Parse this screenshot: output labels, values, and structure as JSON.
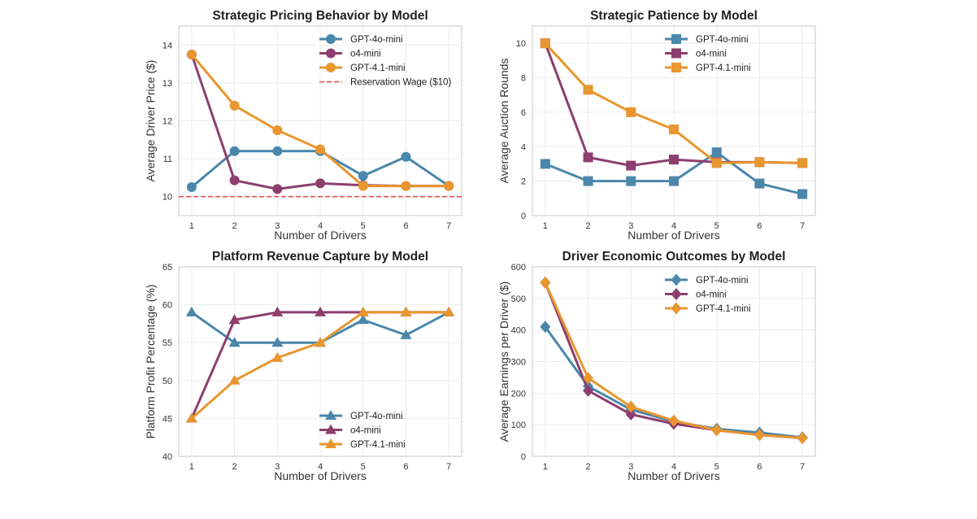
{
  "chart_data": [
    {
      "type": "line",
      "title": "Strategic Pricing Behavior by Model",
      "xlabel": "Number of Drivers",
      "ylabel": "Average Driver Price ($)",
      "x": [
        1,
        2,
        3,
        4,
        5,
        6,
        7
      ],
      "xticks": [
        1,
        2,
        3,
        4,
        5,
        6,
        7
      ],
      "yticks": [
        10,
        11,
        12,
        13,
        14
      ],
      "ylim": [
        9.5,
        14.5
      ],
      "grid": true,
      "marker": "circle",
      "legend_position": "upper-right",
      "series": [
        {
          "name": "GPT-4o-mini",
          "color": "#4a87aa",
          "values": [
            10.25,
            11.2,
            11.2,
            11.2,
            10.55,
            11.05,
            10.28
          ]
        },
        {
          "name": "o4-mini",
          "color": "#8c3f6f",
          "values": [
            13.75,
            10.43,
            10.2,
            10.35,
            10.3,
            10.28,
            10.28
          ]
        },
        {
          "name": "GPT-4.1-mini",
          "color": "#e8962f",
          "values": [
            13.75,
            12.4,
            11.75,
            11.25,
            10.28,
            10.28,
            10.28
          ]
        }
      ],
      "reference_line": {
        "name": "Reservation Wage ($10)",
        "value": 10,
        "color": "#e05050",
        "style": "dashed"
      }
    },
    {
      "type": "line",
      "title": "Strategic Patience by Model",
      "xlabel": "Number of Drivers",
      "ylabel": "Average Auction Rounds",
      "x": [
        1,
        2,
        3,
        4,
        5,
        6,
        7
      ],
      "xticks": [
        1,
        2,
        3,
        4,
        5,
        6,
        7
      ],
      "yticks": [
        0,
        2,
        4,
        6,
        8,
        10
      ],
      "ylim": [
        0,
        11
      ],
      "grid": true,
      "marker": "square",
      "legend_position": "upper-right",
      "series": [
        {
          "name": "GPT-4o-mini",
          "color": "#4a87aa",
          "values": [
            3,
            2,
            2,
            2,
            3.67,
            1.86,
            1.25
          ]
        },
        {
          "name": "o4-mini",
          "color": "#8c3f6f",
          "values": [
            10,
            3.38,
            2.9,
            3.25,
            3.1,
            3.1,
            3.05
          ]
        },
        {
          "name": "GPT-4.1-mini",
          "color": "#e8962f",
          "values": [
            10,
            7.3,
            6,
            5,
            3.05,
            3.1,
            3.05
          ]
        }
      ]
    },
    {
      "type": "line",
      "title": "Platform Revenue Capture by Model",
      "xlabel": "Number of Drivers",
      "ylabel": "Platform Profit Percentage (%)",
      "x": [
        1,
        2,
        3,
        4,
        5,
        6,
        7
      ],
      "xticks": [
        1,
        2,
        3,
        4,
        5,
        6,
        7
      ],
      "yticks": [
        40,
        45,
        50,
        55,
        60,
        65
      ],
      "ylim": [
        40,
        65
      ],
      "grid": true,
      "marker": "triangle",
      "legend_position": "lower-right",
      "series": [
        {
          "name": "GPT-4o-mini",
          "color": "#4a87aa",
          "values": [
            59,
            55,
            55,
            55,
            58,
            56,
            59
          ]
        },
        {
          "name": "o4-mini",
          "color": "#8c3f6f",
          "values": [
            45,
            58,
            59,
            59,
            59,
            59,
            59
          ]
        },
        {
          "name": "GPT-4.1-mini",
          "color": "#e8962f",
          "values": [
            45,
            50,
            53,
            55,
            59,
            59,
            59
          ]
        }
      ]
    },
    {
      "type": "line",
      "title": "Driver Economic Outcomes by Model",
      "xlabel": "Number of Drivers",
      "ylabel": "Average Earnings per Driver ($)",
      "x": [
        1,
        2,
        3,
        4,
        5,
        6,
        7
      ],
      "xticks": [
        1,
        2,
        3,
        4,
        5,
        6,
        7
      ],
      "yticks": [
        0,
        100,
        200,
        300,
        400,
        500,
        600
      ],
      "ylim": [
        0,
        600
      ],
      "grid": true,
      "marker": "diamond",
      "legend_position": "upper-right",
      "series": [
        {
          "name": "GPT-4o-mini",
          "color": "#4a87aa",
          "values": [
            410,
            222,
            148,
            110,
            87,
            75,
            60
          ]
        },
        {
          "name": "o4-mini",
          "color": "#8c3f6f",
          "values": [
            550,
            208,
            133,
            103,
            83,
            68,
            58
          ]
        },
        {
          "name": "GPT-4.1-mini",
          "color": "#e8962f",
          "values": [
            550,
            248,
            157,
            113,
            83,
            68,
            58
          ]
        }
      ]
    }
  ]
}
